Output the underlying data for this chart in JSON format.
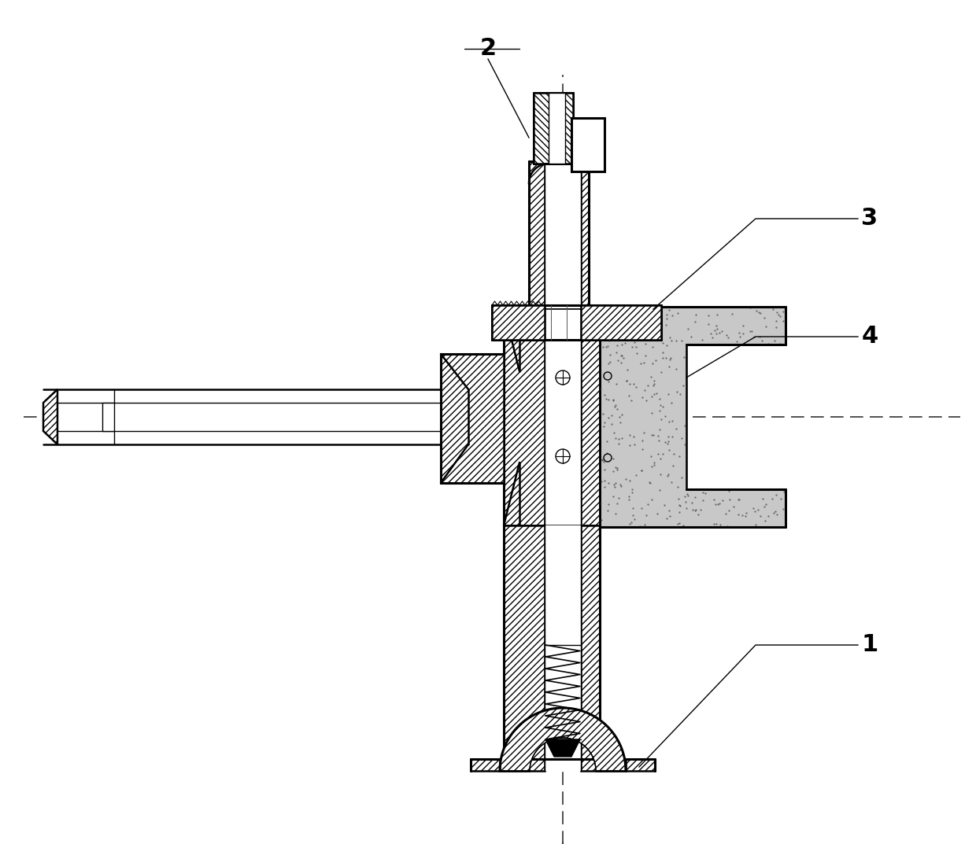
{
  "bg_color": "#ffffff",
  "line_color": "#000000",
  "label_fontsize": 22,
  "labels": [
    "1",
    "2",
    "3",
    "4"
  ],
  "stipple_color": "#c8c8c8"
}
